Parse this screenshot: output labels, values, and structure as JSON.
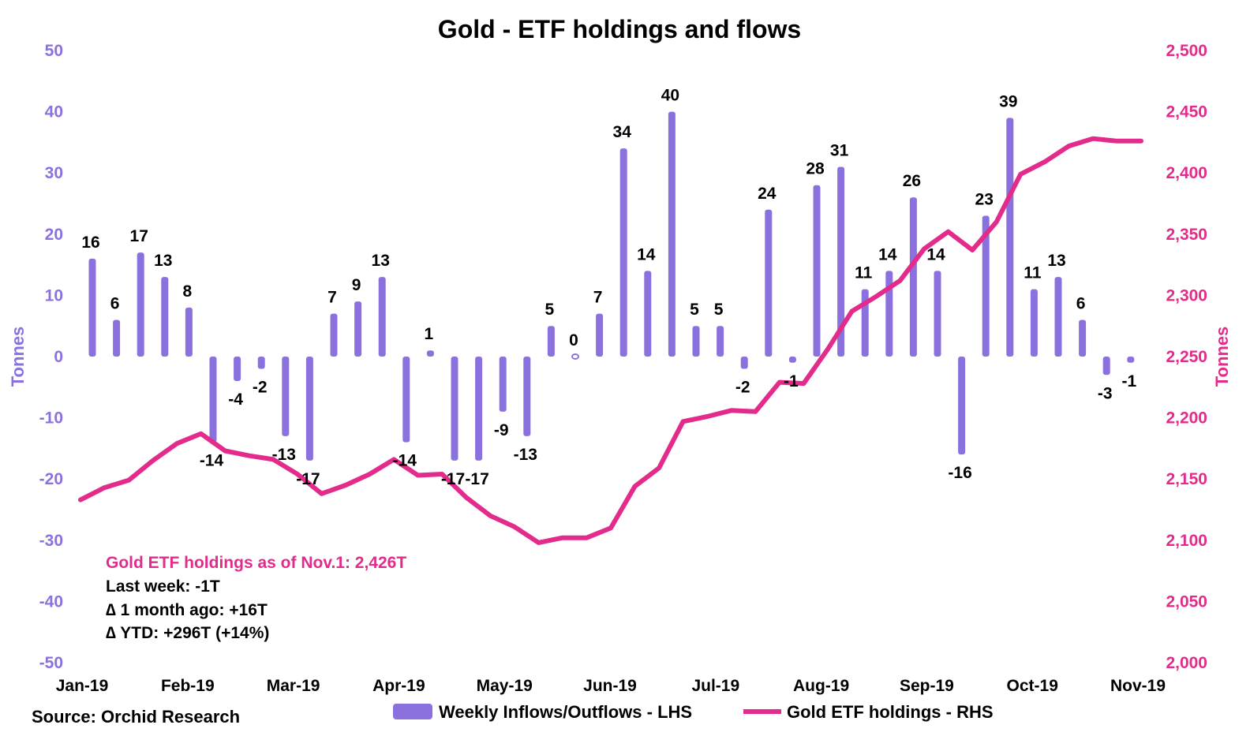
{
  "colors": {
    "bars": "#8b71de",
    "line": "#e32b8b",
    "left_axis": "#8b71de",
    "right_axis": "#e32b8b"
  },
  "source": "Source: Orchid Research",
  "annotation": {
    "headline": "Gold ETF holdings as of Nov.1: 2,426T",
    "line1": "Last week: -1T",
    "line2": "∆ 1 month ago: +16T",
    "line3": "∆ YTD: +296T (+14%)"
  },
  "chart_data": {
    "type": "bar",
    "title": "Gold - ETF holdings and flows",
    "ylabel_left": "Tonnes",
    "ylabel_right": "Tonnes",
    "ylim_left": [
      -50,
      50
    ],
    "ylim_right": [
      2000,
      2500
    ],
    "left_ticks": [
      "50",
      "40",
      "30",
      "20",
      "10",
      "0",
      "-10",
      "-20",
      "-30",
      "-40",
      "-50"
    ],
    "right_ticks": [
      "2,500",
      "2,450",
      "2,400",
      "2,350",
      "2,300",
      "2,250",
      "2,200",
      "2,150",
      "2,100",
      "2,050",
      "2,000"
    ],
    "x_labels": [
      "Jan-19",
      "Feb-19",
      "Mar-19",
      "Apr-19",
      "May-19",
      "Jun-19",
      "Jul-19",
      "Aug-19",
      "Sep-19",
      "Oct-19",
      "Nov-19"
    ],
    "grid": false,
    "legend_position": "bottom",
    "series": [
      {
        "name": "Weekly Inflows/Outflows - LHS",
        "type": "bar",
        "axis": "left",
        "values": [
          16,
          6,
          17,
          13,
          8,
          -14,
          -4,
          -2,
          -13,
          -17,
          7,
          9,
          13,
          -14,
          1,
          -17,
          -17,
          -9,
          -13,
          5,
          0,
          7,
          34,
          14,
          40,
          5,
          5,
          -2,
          24,
          -1,
          28,
          31,
          11,
          14,
          26,
          14,
          -16,
          23,
          39,
          11,
          13,
          6,
          -3,
          -1
        ]
      },
      {
        "name": "Gold ETF holdings - RHS",
        "type": "line",
        "axis": "right",
        "values": [
          2133,
          2143,
          2149,
          2165,
          2179,
          2187,
          2173,
          2169,
          2166,
          2154,
          2138,
          2145,
          2154,
          2166,
          2153,
          2154,
          2135,
          2120,
          2111,
          2098,
          2102,
          2102,
          2110,
          2144,
          2159,
          2197,
          2201,
          2206,
          2205,
          2229,
          2228,
          2256,
          2287,
          2299,
          2312,
          2338,
          2352,
          2337,
          2360,
          2399,
          2409,
          2422,
          2428,
          2426,
          2426
        ]
      }
    ]
  }
}
